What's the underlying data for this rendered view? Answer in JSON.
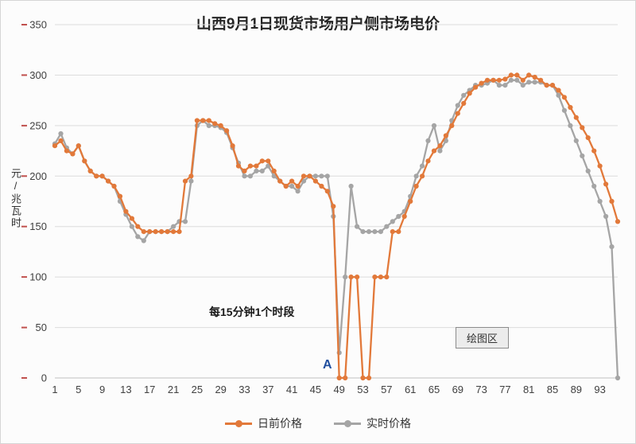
{
  "chart_data": {
    "type": "line",
    "title": "山西9月1日现货市场用户侧市场电价",
    "ylabel": "元/兆瓦时",
    "ylim": [
      0,
      350
    ],
    "ytick_step": 50,
    "xticks": [
      1,
      5,
      9,
      13,
      17,
      21,
      25,
      29,
      33,
      37,
      41,
      45,
      49,
      53,
      57,
      61,
      65,
      69,
      73,
      77,
      81,
      85,
      89,
      93
    ],
    "x_description": "96 fifteen-minute periods (1-96)",
    "grid": true,
    "legend_position": "bottom",
    "axis_tick_color": "#c0504d",
    "series": [
      {
        "name": "日前价格",
        "color": "#e2793a",
        "values": [
          230,
          235,
          225,
          222,
          230,
          215,
          205,
          200,
          200,
          195,
          190,
          180,
          165,
          158,
          150,
          145,
          145,
          145,
          145,
          145,
          145,
          145,
          195,
          200,
          255,
          255,
          255,
          252,
          250,
          245,
          230,
          210,
          205,
          210,
          210,
          215,
          215,
          205,
          195,
          190,
          195,
          190,
          200,
          200,
          195,
          190,
          185,
          170,
          0,
          0,
          100,
          100,
          0,
          0,
          100,
          100,
          100,
          145,
          145,
          160,
          175,
          190,
          200,
          215,
          225,
          230,
          240,
          250,
          262,
          272,
          282,
          288,
          292,
          295,
          295,
          295,
          296,
          300,
          300,
          295,
          300,
          298,
          295,
          290,
          290,
          285,
          278,
          268,
          258,
          248,
          238,
          225,
          210,
          192,
          175,
          155
        ]
      },
      {
        "name": "实时价格",
        "color": "#a5a5a5",
        "values": [
          232,
          242,
          228,
          222,
          230,
          215,
          205,
          200,
          200,
          195,
          190,
          175,
          162,
          150,
          140,
          136,
          145,
          145,
          145,
          145,
          150,
          155,
          155,
          195,
          250,
          255,
          250,
          250,
          248,
          243,
          228,
          213,
          200,
          200,
          205,
          205,
          210,
          200,
          195,
          190,
          190,
          185,
          195,
          200,
          200,
          200,
          200,
          160,
          25,
          100,
          190,
          150,
          145,
          145,
          145,
          145,
          150,
          155,
          160,
          165,
          180,
          200,
          210,
          235,
          250,
          225,
          235,
          255,
          270,
          280,
          285,
          290,
          290,
          292,
          295,
          290,
          290,
          295,
          295,
          290,
          293,
          293,
          293,
          290,
          290,
          280,
          265,
          250,
          235,
          220,
          205,
          190,
          175,
          160,
          130,
          0
        ]
      }
    ],
    "annotations": {
      "interval_note": "每15分钟1个时段",
      "point_label": "A",
      "tooltip": "绘图区"
    }
  }
}
